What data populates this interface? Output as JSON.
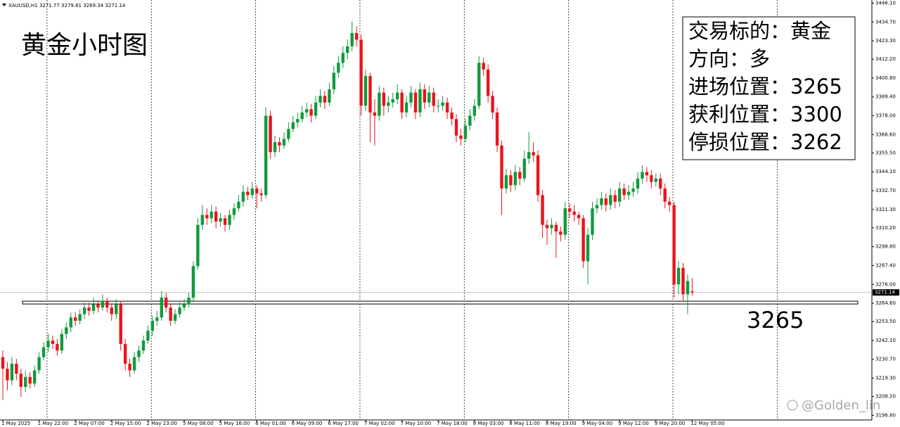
{
  "chart_data": {
    "type": "candlestick",
    "symbol": "XAUUSD,H1",
    "title": "黄金小时图",
    "info": [
      "交易标的：黄金",
      "方向：多",
      "进场位置：3265",
      "获利位置：3300",
      "停损位置：3262"
    ],
    "level": 3265,
    "watermark": "@Golden_lin",
    "up_color": "#119a3c",
    "down_color": "#e8141c",
    "ylim": [
      3194,
      3448
    ],
    "yticks": [
      {
        "value": 3446.1,
        "label": "3446.10"
      },
      {
        "value": 3434.7,
        "label": "3434.70"
      },
      {
        "value": 3423.3,
        "label": "3423.30"
      },
      {
        "value": 3412.2,
        "label": "3412.20"
      },
      {
        "value": 3400.8,
        "label": "3400.80"
      },
      {
        "value": 3389.4,
        "label": "3389.40"
      },
      {
        "value": 3378,
        "label": "3378.00"
      },
      {
        "value": 3366.6,
        "label": "3366.60"
      },
      {
        "value": 3355.5,
        "label": "3355.50"
      },
      {
        "value": 3344.1,
        "label": "3344.10"
      },
      {
        "value": 3332.7,
        "label": "3332.70"
      },
      {
        "value": 3321.3,
        "label": "3321.30"
      },
      {
        "value": 3310.2,
        "label": "3310.20"
      },
      {
        "value": 3298.8,
        "label": "3298.80"
      },
      {
        "value": 3287.4,
        "label": "3287.40"
      },
      {
        "value": 3276,
        "label": "3276.00"
      },
      {
        "value": 3264.6,
        "label": "3264.60"
      },
      {
        "value": 3253.5,
        "label": "3253.50"
      },
      {
        "value": 3242.1,
        "label": "3242.10"
      },
      {
        "value": 3230.7,
        "label": "3230.70"
      },
      {
        "value": 3219.3,
        "label": "3219.30"
      },
      {
        "value": 3208.2,
        "label": "3208.20"
      },
      {
        "value": 3196.8,
        "label": "3196.80"
      }
    ],
    "categories": [
      "1 May 2025",
      null,
      null,
      null,
      null,
      null,
      null,
      null,
      "1 May 22:00",
      null,
      null,
      null,
      null,
      null,
      null,
      null,
      "2 May 07:00",
      null,
      null,
      null,
      null,
      null,
      null,
      null,
      "2 May 15:00",
      null,
      null,
      null,
      null,
      null,
      null,
      null,
      "2 May 23:00",
      null,
      null,
      null,
      null,
      null,
      null,
      null,
      "5 May 08:00",
      null,
      null,
      null,
      null,
      null,
      null,
      null,
      "5 May 16:00",
      null,
      null,
      null,
      null,
      null,
      null,
      null,
      "6 May 01:00",
      null,
      null,
      null,
      null,
      null,
      null,
      null,
      "6 May 09:00",
      null,
      null,
      null,
      null,
      null,
      null,
      null,
      "6 May 17:00",
      null,
      null,
      null,
      null,
      null,
      null,
      null,
      "7 May 02:00",
      null,
      null,
      null,
      null,
      null,
      null,
      null,
      "7 May 10:00",
      null,
      null,
      null,
      null,
      null,
      null,
      null,
      "7 May 18:00",
      null,
      null,
      null,
      null,
      null,
      null,
      null,
      "8 May 03:00",
      null,
      null,
      null,
      null,
      null,
      null,
      null,
      "8 May 11:00",
      null,
      null,
      null,
      null,
      null,
      null,
      null,
      "8 May 19:00",
      null,
      null,
      null,
      null,
      null,
      null,
      null,
      "9 May 04:00",
      null,
      null,
      null,
      null,
      null,
      null,
      null,
      "9 May 12:00",
      null,
      null,
      null,
      null,
      null,
      null,
      null,
      "9 May 20:00",
      null,
      null,
      null,
      null,
      null,
      null,
      null,
      "12 May 05:00"
    ],
    "candles": [
      [
        3232,
        3236,
        3206,
        3225
      ],
      [
        3225,
        3229,
        3212,
        3218
      ],
      [
        3218,
        3232,
        3215,
        3228
      ],
      [
        3228,
        3231,
        3218,
        3222
      ],
      [
        3222,
        3225,
        3208,
        3214
      ],
      [
        3214,
        3224,
        3211,
        3220
      ],
      [
        3220,
        3223,
        3213,
        3216
      ],
      [
        3216,
        3227,
        3214,
        3224
      ],
      [
        3224,
        3235,
        3222,
        3232
      ],
      [
        3232,
        3241,
        3230,
        3238
      ],
      [
        3238,
        3246,
        3235,
        3242
      ],
      [
        3242,
        3245,
        3237,
        3240
      ],
      [
        3240,
        3243,
        3233,
        3236
      ],
      [
        3236,
        3249,
        3234,
        3246
      ],
      [
        3246,
        3253,
        3243,
        3250
      ],
      [
        3250,
        3259,
        3247,
        3256
      ],
      [
        3256,
        3259,
        3251,
        3254
      ],
      [
        3254,
        3261,
        3252,
        3258
      ],
      [
        3258,
        3265,
        3255,
        3262
      ],
      [
        3262,
        3265,
        3257,
        3260
      ],
      [
        3260,
        3268,
        3258,
        3264
      ],
      [
        3264,
        3266,
        3259,
        3262
      ],
      [
        3262,
        3270,
        3260,
        3266
      ],
      [
        3266,
        3268,
        3259,
        3262
      ],
      [
        3262,
        3264,
        3254,
        3258
      ],
      [
        3258,
        3267,
        3255,
        3264
      ],
      [
        3264,
        3266,
        3236,
        3240
      ],
      [
        3240,
        3243,
        3224,
        3228
      ],
      [
        3228,
        3231,
        3220,
        3224
      ],
      [
        3224,
        3235,
        3222,
        3232
      ],
      [
        3232,
        3239,
        3229,
        3236
      ],
      [
        3236,
        3245,
        3234,
        3242
      ],
      [
        3242,
        3251,
        3240,
        3248
      ],
      [
        3248,
        3257,
        3245,
        3254
      ],
      [
        3254,
        3260,
        3251,
        3256
      ],
      [
        3256,
        3272,
        3254,
        3268
      ],
      [
        3268,
        3271,
        3259,
        3262
      ],
      [
        3262,
        3264,
        3251,
        3254
      ],
      [
        3254,
        3261,
        3252,
        3258
      ],
      [
        3258,
        3265,
        3256,
        3262
      ],
      [
        3262,
        3267,
        3260,
        3264
      ],
      [
        3264,
        3271,
        3262,
        3268
      ],
      [
        3268,
        3290,
        3266,
        3287
      ],
      [
        3287,
        3316,
        3285,
        3312
      ],
      [
        3312,
        3324,
        3309,
        3318
      ],
      [
        3318,
        3322,
        3312,
        3316
      ],
      [
        3316,
        3324,
        3313,
        3320
      ],
      [
        3320,
        3323,
        3310,
        3314
      ],
      [
        3314,
        3319,
        3311,
        3316
      ],
      [
        3316,
        3318,
        3308,
        3312
      ],
      [
        3312,
        3321,
        3309,
        3318
      ],
      [
        3318,
        3325,
        3315,
        3322
      ],
      [
        3322,
        3330,
        3320,
        3326
      ],
      [
        3326,
        3336,
        3323,
        3332
      ],
      [
        3332,
        3335,
        3327,
        3330
      ],
      [
        3330,
        3338,
        3328,
        3334
      ],
      [
        3334,
        3336,
        3322,
        3331
      ],
      [
        3331,
        3334,
        3326,
        3330
      ],
      [
        3330,
        3383,
        3328,
        3378
      ],
      [
        3378,
        3381,
        3352,
        3356
      ],
      [
        3356,
        3366,
        3353,
        3362
      ],
      [
        3362,
        3365,
        3356,
        3360
      ],
      [
        3360,
        3368,
        3358,
        3364
      ],
      [
        3364,
        3374,
        3362,
        3370
      ],
      [
        3370,
        3378,
        3368,
        3374
      ],
      [
        3374,
        3380,
        3371,
        3376
      ],
      [
        3376,
        3384,
        3374,
        3380
      ],
      [
        3380,
        3386,
        3377,
        3382
      ],
      [
        3382,
        3385,
        3374,
        3378
      ],
      [
        3378,
        3390,
        3376,
        3386
      ],
      [
        3386,
        3394,
        3383,
        3390
      ],
      [
        3390,
        3393,
        3382,
        3386
      ],
      [
        3386,
        3398,
        3384,
        3394
      ],
      [
        3394,
        3408,
        3391,
        3404
      ],
      [
        3404,
        3414,
        3401,
        3410
      ],
      [
        3410,
        3420,
        3407,
        3416
      ],
      [
        3416,
        3424,
        3412,
        3420
      ],
      [
        3420,
        3435,
        3417,
        3428
      ],
      [
        3428,
        3432,
        3420,
        3424
      ],
      [
        3424,
        3427,
        3378,
        3384
      ],
      [
        3384,
        3406,
        3381,
        3402
      ],
      [
        3402,
        3404,
        3362,
        3380
      ],
      [
        3380,
        3388,
        3360,
        3378
      ],
      [
        3378,
        3396,
        3375,
        3392
      ],
      [
        3392,
        3395,
        3378,
        3384
      ],
      [
        3384,
        3390,
        3380,
        3386
      ],
      [
        3386,
        3392,
        3383,
        3388
      ],
      [
        3388,
        3397,
        3385,
        3392
      ],
      [
        3392,
        3394,
        3376,
        3380
      ],
      [
        3380,
        3390,
        3377,
        3386
      ],
      [
        3386,
        3396,
        3383,
        3392
      ],
      [
        3392,
        3394,
        3376,
        3380
      ],
      [
        3380,
        3398,
        3377,
        3394
      ],
      [
        3394,
        3397,
        3382,
        3386
      ],
      [
        3386,
        3396,
        3383,
        3392
      ],
      [
        3392,
        3395,
        3380,
        3384
      ],
      [
        3384,
        3388,
        3380,
        3384
      ],
      [
        3384,
        3390,
        3381,
        3386
      ],
      [
        3386,
        3389,
        3376,
        3380
      ],
      [
        3380,
        3383,
        3372,
        3376
      ],
      [
        3376,
        3379,
        3362,
        3366
      ],
      [
        3366,
        3370,
        3360,
        3364
      ],
      [
        3364,
        3376,
        3362,
        3372
      ],
      [
        3372,
        3382,
        3369,
        3378
      ],
      [
        3378,
        3388,
        3375,
        3384
      ],
      [
        3384,
        3414,
        3382,
        3410
      ],
      [
        3410,
        3413,
        3402,
        3406
      ],
      [
        3406,
        3409,
        3386,
        3390
      ],
      [
        3390,
        3393,
        3376,
        3380
      ],
      [
        3380,
        3383,
        3356,
        3360
      ],
      [
        3360,
        3363,
        3318,
        3334
      ],
      [
        3334,
        3346,
        3331,
        3342
      ],
      [
        3342,
        3345,
        3332,
        3336
      ],
      [
        3336,
        3348,
        3333,
        3344
      ],
      [
        3344,
        3347,
        3336,
        3340
      ],
      [
        3340,
        3357,
        3338,
        3352
      ],
      [
        3352,
        3368,
        3349,
        3356
      ],
      [
        3356,
        3362,
        3350,
        3354
      ],
      [
        3354,
        3357,
        3326,
        3330
      ],
      [
        3330,
        3333,
        3304,
        3312
      ],
      [
        3312,
        3315,
        3300,
        3310
      ],
      [
        3310,
        3316,
        3306,
        3312
      ],
      [
        3312,
        3314,
        3292,
        3308
      ],
      [
        3308,
        3311,
        3302,
        3306
      ],
      [
        3306,
        3326,
        3303,
        3322
      ],
      [
        3322,
        3325,
        3316,
        3320
      ],
      [
        3320,
        3324,
        3314,
        3318
      ],
      [
        3318,
        3320,
        3312,
        3316
      ],
      [
        3316,
        3318,
        3286,
        3290
      ],
      [
        3290,
        3310,
        3276,
        3306
      ],
      [
        3306,
        3326,
        3303,
        3322
      ],
      [
        3322,
        3328,
        3319,
        3324
      ],
      [
        3324,
        3332,
        3321,
        3328
      ],
      [
        3328,
        3331,
        3320,
        3324
      ],
      [
        3324,
        3334,
        3321,
        3330
      ],
      [
        3330,
        3333,
        3322,
        3326
      ],
      [
        3326,
        3338,
        3323,
        3334
      ],
      [
        3334,
        3337,
        3327,
        3330
      ],
      [
        3330,
        3336,
        3327,
        3332
      ],
      [
        3332,
        3338,
        3329,
        3334
      ],
      [
        3334,
        3344,
        3331,
        3340
      ],
      [
        3340,
        3348,
        3337,
        3344
      ],
      [
        3344,
        3347,
        3338,
        3342
      ],
      [
        3342,
        3345,
        3334,
        3338
      ],
      [
        3338,
        3343,
        3335,
        3340
      ],
      [
        3340,
        3343,
        3330,
        3334
      ],
      [
        3334,
        3337,
        3322,
        3326
      ],
      [
        3326,
        3329,
        3320,
        3324
      ],
      [
        3324,
        3326,
        3268,
        3276
      ],
      [
        3276,
        3290,
        3270,
        3286
      ],
      [
        3286,
        3289,
        3266,
        3270
      ],
      [
        3270,
        3282,
        3258,
        3278
      ],
      [
        3271.77,
        3279.81,
        3269.34,
        3271.14
      ]
    ]
  }
}
